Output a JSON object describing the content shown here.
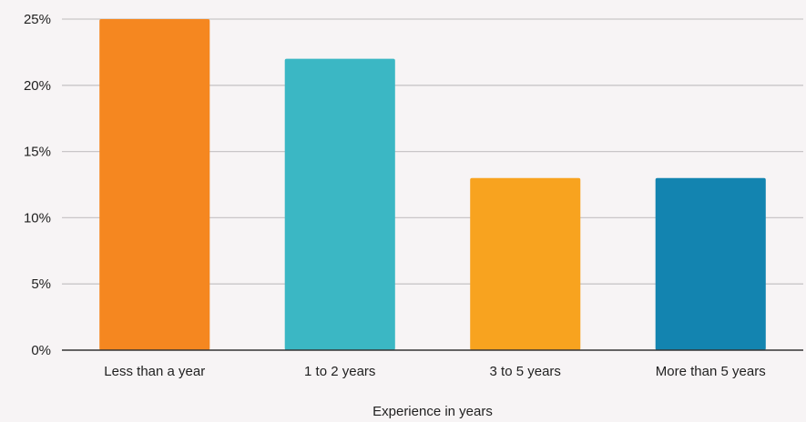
{
  "chart_data": {
    "type": "bar",
    "title": "",
    "xlabel": "Experience in years",
    "ylabel": "",
    "categories": [
      "Less than a year",
      "1 to 2 years",
      "3 to 5 years",
      "More than 5 years"
    ],
    "values": [
      25,
      22,
      13,
      13
    ],
    "colors": [
      "#f58720",
      "#3bb7c4",
      "#f8a31f",
      "#1384b0"
    ],
    "ylim": [
      0,
      25
    ],
    "yticks": [
      0,
      5,
      10,
      15,
      20,
      25
    ],
    "ytick_labels": [
      "0%",
      "5%",
      "10%",
      "15%",
      "20%",
      "25%"
    ],
    "grid": true,
    "legend": "none"
  }
}
